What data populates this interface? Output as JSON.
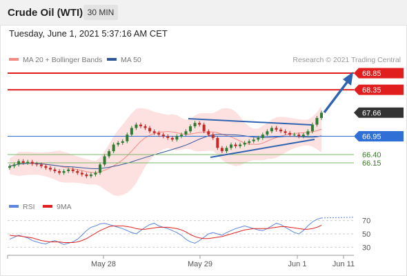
{
  "header": {
    "title": "Crude Oil (WTI)",
    "timeframe": "30 MIN"
  },
  "timestamp": "Tuesday, June 1, 2021 5:37:16 AM CET",
  "legend": {
    "ma20_label": "MA 20 + Bollinger Bands",
    "ma50_label": "MA 50",
    "copyright": "Research © 2021 Trading Central"
  },
  "rsi_legend": {
    "rsi_label": "RSI",
    "ma9_label": "9MA"
  },
  "colors": {
    "resistance": "#e01e1e",
    "support": "#7ab86a",
    "pivot": "#2f6fd6",
    "last_price": "#333333",
    "candle_up": "#2e7d32",
    "candle_down": "#c62828",
    "bollinger_fill": "#fde0e0",
    "ma20": "#f28b82",
    "ma50": "#2f5597",
    "rsi": "#5b84e0",
    "ma9": "#e01e1e",
    "trend_arrow": "#2f63b0"
  },
  "chart_data": [
    {
      "type": "candlestick",
      "title": "Crude Oil (WTI)",
      "ylim": [
        65.6,
        69.0
      ],
      "x_ticks": [
        "May 28",
        "May 29",
        "Jun 1",
        "Jun 11"
      ],
      "levels": [
        {
          "value": 68.85,
          "label": "68.85",
          "role": "resistance"
        },
        {
          "value": 68.35,
          "label": "68.35",
          "role": "resistance"
        },
        {
          "value": 67.66,
          "label": "67.66",
          "role": "last_price"
        },
        {
          "value": 66.95,
          "label": "66.95",
          "role": "pivot"
        },
        {
          "value": 66.4,
          "label": "66.40",
          "role": "support"
        },
        {
          "value": 66.15,
          "label": "66.15",
          "role": "support"
        }
      ],
      "close_series": [
        66.05,
        66.1,
        66.2,
        66.15,
        66.18,
        66.12,
        66.1,
        66.05,
        66.0,
        65.95,
        65.9,
        65.85,
        65.9,
        65.95,
        65.9,
        65.85,
        65.8,
        65.75,
        65.8,
        65.85,
        66.1,
        66.35,
        66.5,
        66.7,
        66.75,
        66.8,
        67.0,
        67.2,
        67.3,
        67.25,
        67.2,
        67.1,
        67.05,
        67.0,
        66.95,
        66.9,
        66.85,
        66.95,
        67.0,
        67.1,
        67.25,
        67.35,
        67.3,
        67.1,
        67.0,
        66.9,
        66.6,
        66.5,
        66.6,
        66.7,
        66.65,
        66.7,
        66.75,
        66.8,
        66.85,
        66.9,
        67.0,
        67.1,
        67.2,
        67.15,
        67.1,
        67.05,
        67.0,
        67.0,
        66.95,
        67.0,
        67.1,
        67.3,
        67.5,
        67.66
      ],
      "annotations": [
        "triangle pattern",
        "upward trend arrow toward 68.85"
      ]
    },
    {
      "type": "line",
      "series": [
        {
          "name": "RSI",
          "values": [
            42,
            45,
            48,
            46,
            44,
            40,
            38,
            36,
            35,
            38,
            40,
            37,
            34,
            36,
            38,
            42,
            48,
            55,
            60,
            62,
            65,
            66,
            64,
            62,
            60,
            58,
            55,
            52,
            50,
            55,
            60,
            64,
            66,
            62,
            60,
            58,
            55,
            52,
            48,
            42,
            38,
            36,
            40,
            45,
            50,
            52,
            50,
            48,
            52,
            55,
            58,
            60,
            62,
            60,
            58,
            56,
            55,
            58,
            62,
            66,
            64,
            60,
            56,
            52,
            50,
            55,
            62,
            68,
            72,
            74
          ]
        },
        {
          "name": "9MA",
          "values": [
            48,
            47,
            47,
            46,
            45,
            44,
            42,
            40,
            39,
            38,
            38,
            38,
            37,
            37,
            37,
            38,
            40,
            43,
            47,
            51,
            55,
            58,
            61,
            62,
            62,
            62,
            61,
            60,
            58,
            57,
            57,
            58,
            59,
            60,
            60,
            60,
            59,
            58,
            56,
            53,
            49,
            46,
            44,
            43,
            43,
            44,
            45,
            46,
            48,
            50,
            52,
            54,
            56,
            57,
            58,
            58,
            58,
            58,
            59,
            60,
            61,
            61,
            60,
            59,
            58,
            57,
            57,
            58,
            60,
            63
          ]
        }
      ],
      "y_ticks": [
        70,
        50,
        30
      ],
      "ylim": [
        22,
        78
      ]
    }
  ]
}
